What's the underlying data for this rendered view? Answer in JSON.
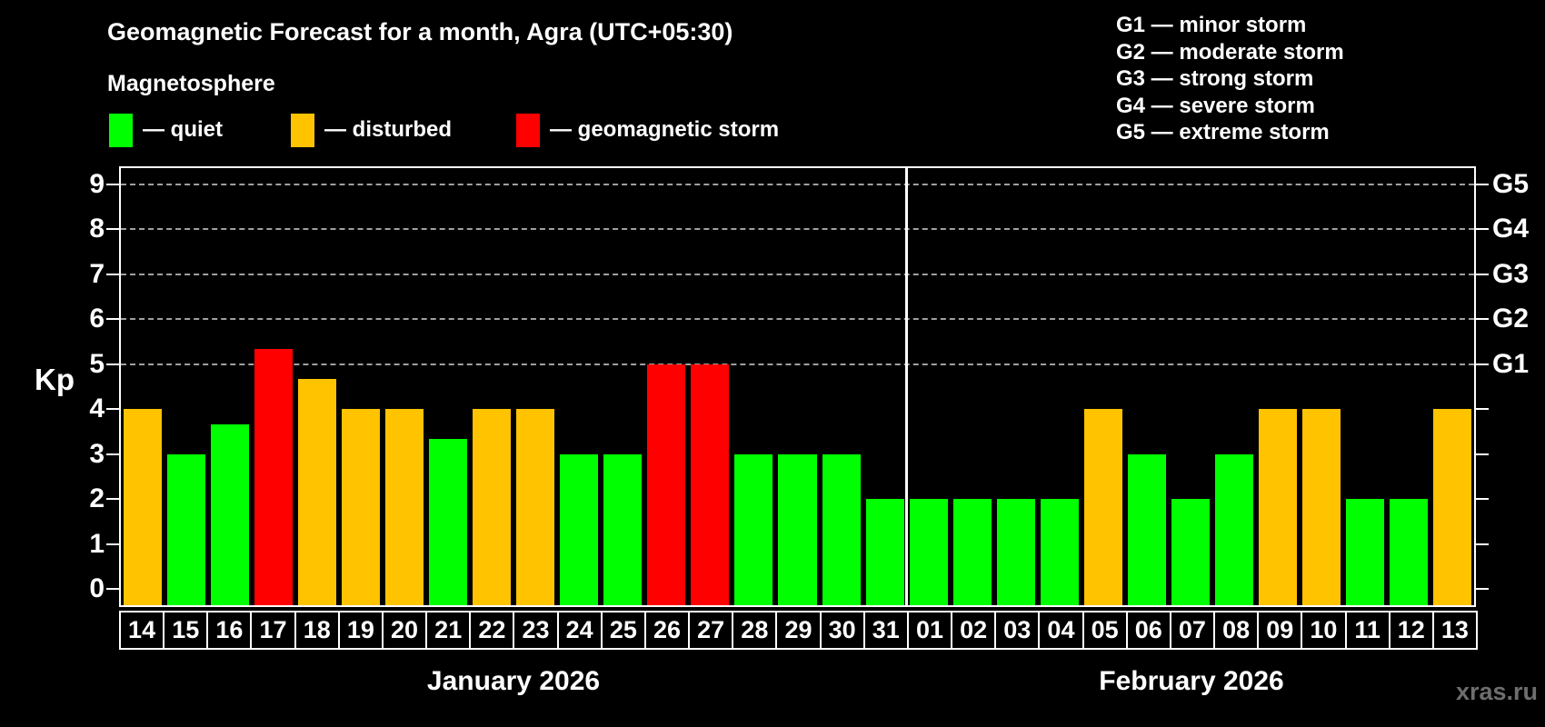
{
  "page": {
    "background": "#000000",
    "watermark": "xras.ru"
  },
  "header": {
    "subtitle": "Magnetosphere",
    "legend": [
      {
        "key": "quiet",
        "label": "— quiet",
        "color": "#00ff00"
      },
      {
        "key": "disturbed",
        "label": "— disturbed",
        "color": "#ffc300"
      },
      {
        "key": "storm",
        "label": "— geomagnetic storm",
        "color": "#ff0000"
      }
    ],
    "g_scale": [
      "G1 — minor storm",
      "G2 — moderate storm",
      "G3 — strong storm",
      "G4 — severe storm",
      "G5 — extreme storm"
    ]
  },
  "chart_data": {
    "type": "bar",
    "title": "Geomagnetic Forecast for a month, Agra (UTC+05:30)",
    "ylabel": "Kp",
    "ylim": [
      0,
      9
    ],
    "y_ticks": [
      0,
      1,
      2,
      3,
      4,
      5,
      6,
      7,
      8,
      9
    ],
    "gridlines_at": [
      5,
      6,
      7,
      8,
      9
    ],
    "right_axis": [
      {
        "kp": 5,
        "label": "G1"
      },
      {
        "kp": 6,
        "label": "G2"
      },
      {
        "kp": 7,
        "label": "G3"
      },
      {
        "kp": 8,
        "label": "G4"
      },
      {
        "kp": 9,
        "label": "G5"
      }
    ],
    "colors": {
      "quiet": "#00ff00",
      "disturbed": "#ffc300",
      "storm": "#ff0000"
    },
    "legend_position": "top-left",
    "grid": "dashed horizontal at storm levels",
    "months": [
      {
        "label": "January 2026",
        "days": [
          {
            "day": "14",
            "kp": 4,
            "status": "disturbed"
          },
          {
            "day": "15",
            "kp": 3,
            "status": "quiet"
          },
          {
            "day": "16",
            "kp": 3.67,
            "status": "quiet"
          },
          {
            "day": "17",
            "kp": 5.33,
            "status": "storm"
          },
          {
            "day": "18",
            "kp": 4.67,
            "status": "disturbed"
          },
          {
            "day": "19",
            "kp": 4,
            "status": "disturbed"
          },
          {
            "day": "20",
            "kp": 4,
            "status": "disturbed"
          },
          {
            "day": "21",
            "kp": 3.33,
            "status": "quiet"
          },
          {
            "day": "22",
            "kp": 4,
            "status": "disturbed"
          },
          {
            "day": "23",
            "kp": 4,
            "status": "disturbed"
          },
          {
            "day": "24",
            "kp": 3,
            "status": "quiet"
          },
          {
            "day": "25",
            "kp": 3,
            "status": "quiet"
          },
          {
            "day": "26",
            "kp": 5,
            "status": "storm"
          },
          {
            "day": "27",
            "kp": 5,
            "status": "storm"
          },
          {
            "day": "28",
            "kp": 3,
            "status": "quiet"
          },
          {
            "day": "29",
            "kp": 3,
            "status": "quiet"
          },
          {
            "day": "30",
            "kp": 3,
            "status": "quiet"
          },
          {
            "day": "31",
            "kp": 2,
            "status": "quiet"
          }
        ]
      },
      {
        "label": "February 2026",
        "days": [
          {
            "day": "01",
            "kp": 2,
            "status": "quiet"
          },
          {
            "day": "02",
            "kp": 2,
            "status": "quiet"
          },
          {
            "day": "03",
            "kp": 2,
            "status": "quiet"
          },
          {
            "day": "04",
            "kp": 2,
            "status": "quiet"
          },
          {
            "day": "05",
            "kp": 4,
            "status": "disturbed"
          },
          {
            "day": "06",
            "kp": 3,
            "status": "quiet"
          },
          {
            "day": "07",
            "kp": 2,
            "status": "quiet"
          },
          {
            "day": "08",
            "kp": 3,
            "status": "quiet"
          },
          {
            "day": "09",
            "kp": 4,
            "status": "disturbed"
          },
          {
            "day": "10",
            "kp": 4,
            "status": "disturbed"
          },
          {
            "day": "11",
            "kp": 2,
            "status": "quiet"
          },
          {
            "day": "12",
            "kp": 2,
            "status": "quiet"
          },
          {
            "day": "13",
            "kp": 4,
            "status": "disturbed"
          }
        ]
      }
    ]
  }
}
